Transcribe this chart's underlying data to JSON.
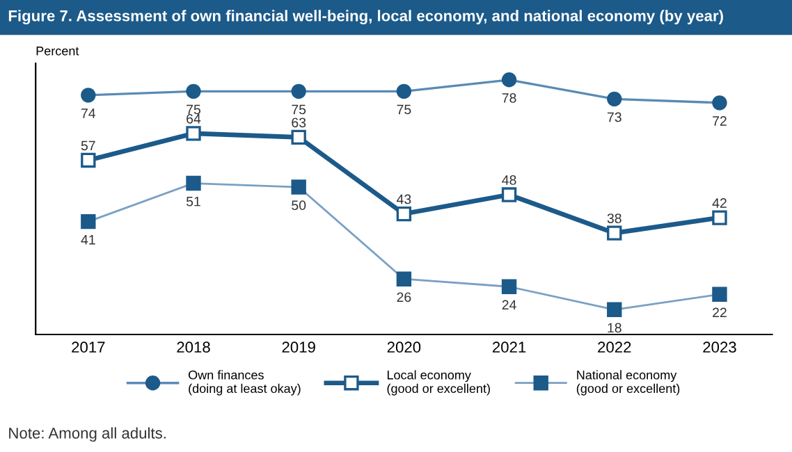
{
  "chart_data": {
    "type": "line",
    "title": "Figure 7. Assessment of own financial well-being, local economy, and national economy (by year)",
    "ylabel": "Percent",
    "categories": [
      "2017",
      "2018",
      "2019",
      "2020",
      "2021",
      "2022",
      "2023"
    ],
    "series": [
      {
        "name": "Own finances\n(doing at least okay)",
        "color": "#5a8ab5",
        "marker": "circle",
        "values": [
          74,
          75,
          75,
          75,
          78,
          73,
          72
        ]
      },
      {
        "name": "Local economy\n(good or excellent)",
        "color": "#1c5a8a",
        "marker": "square",
        "values": [
          57,
          64,
          63,
          43,
          48,
          38,
          42
        ]
      },
      {
        "name": "National economy\n(good or excellent)",
        "color": "#7aa0c4",
        "marker": "square",
        "values": [
          41,
          51,
          50,
          26,
          24,
          18,
          22
        ]
      }
    ],
    "data_labels": true,
    "grid": false,
    "legend": "bottom",
    "line_style": "solid",
    "annotations": [
      "Note: Among all adults."
    ]
  }
}
